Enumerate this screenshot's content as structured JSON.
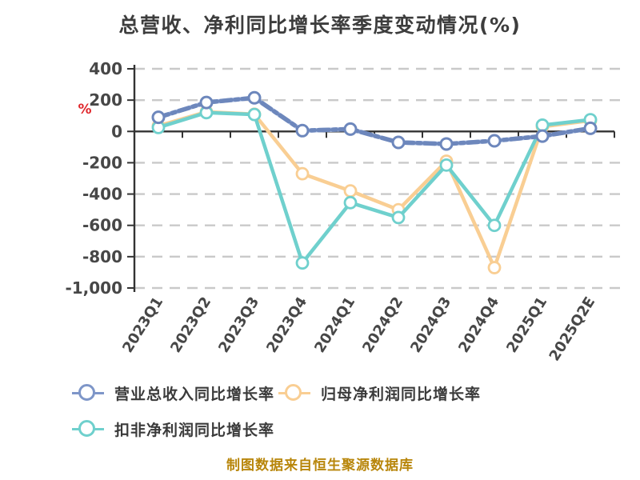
{
  "title": "总营收、净利同比增长率季度变动情况(%)",
  "caption": "制图数据来自恒生聚源数据库",
  "y_axis_unit": "%",
  "legend": {
    "items": [
      {
        "label": "营业总收入同比增长率",
        "series": "revenue"
      },
      {
        "label": "归母净利润同比增长率",
        "series": "net_profit"
      },
      {
        "label": "扣非净利润同比增长率",
        "series": "non_recurring"
      }
    ]
  },
  "colors": {
    "revenue": "#7E96C8",
    "revenue_dash": "#6D87BC",
    "revenue_light": "#A9BCE2",
    "net_profit": "#F9CE93",
    "non_recurring": "#6FD0CD",
    "grid": "#C9C9C9",
    "axis": "#333333",
    "tick_text": "#474747",
    "title_text": "#3D3D3D",
    "unit_text": "#E0262B",
    "caption_text": "#B8860B"
  },
  "chart_data": {
    "type": "line",
    "title": "总营收、净利同比增长率季度变动情况(%)",
    "xlabel": "",
    "ylabel": "%",
    "ylim": [
      -1000,
      400
    ],
    "ytick_step": 200,
    "grid": "horizontal-dashed",
    "legend_position": "bottom-left",
    "categories": [
      "2023Q1",
      "2023Q2",
      "2023Q3",
      "2023Q4",
      "2024Q1",
      "2024Q2",
      "2024Q3",
      "2024Q4",
      "2025Q1",
      "2025Q2E"
    ],
    "series": [
      {
        "name": "营业总收入同比增长率",
        "key": "revenue",
        "color": "#7E96C8",
        "line_style": "dashed",
        "values": [
          90,
          185,
          215,
          5,
          15,
          -70,
          -80,
          -60,
          -30,
          20
        ]
      },
      {
        "name": "归母净利润同比增长率",
        "key": "net_profit",
        "color": "#F9CE93",
        "line_style": "solid",
        "values": [
          35,
          125,
          110,
          -270,
          -380,
          -500,
          -190,
          -870,
          30,
          70
        ]
      },
      {
        "name": "扣非净利润同比增长率",
        "key": "non_recurring",
        "color": "#6FD0CD",
        "line_style": "solid",
        "values": [
          25,
          120,
          108,
          -840,
          -455,
          -550,
          -215,
          -600,
          40,
          75
        ]
      }
    ]
  }
}
